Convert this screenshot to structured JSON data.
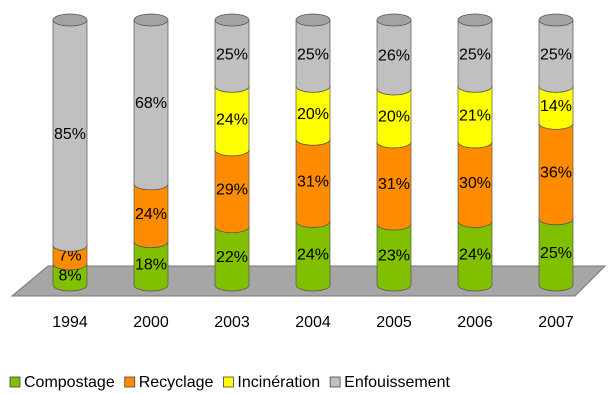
{
  "chart_data": {
    "type": "bar",
    "stacking": "percent",
    "categories": [
      "1994",
      "2000",
      "2003",
      "2004",
      "2005",
      "2006",
      "2007"
    ],
    "series": [
      {
        "name": "Compostage",
        "color": "#80c000",
        "values": [
          8,
          18,
          22,
          24,
          23,
          24,
          25
        ],
        "value_labels": [
          "8%",
          "18%",
          "22%",
          "24%",
          "23%",
          "24%",
          "25%"
        ]
      },
      {
        "name": "Recyclage",
        "color": "#ff8c00",
        "values": [
          7,
          24,
          29,
          31,
          31,
          30,
          36
        ],
        "value_labels": [
          "7%",
          "24%",
          "29%",
          "31%",
          "31%",
          "30%",
          "36%"
        ]
      },
      {
        "name": "Incinération",
        "color": "#ffff00",
        "values": [
          null,
          null,
          24,
          20,
          20,
          21,
          14
        ],
        "value_labels": [
          null,
          null,
          "24%",
          "20%",
          "20%",
          "21%",
          "14%"
        ]
      },
      {
        "name": "Enfouissement",
        "color": "#c0c0c0",
        "values": [
          85,
          68,
          25,
          25,
          26,
          25,
          25
        ],
        "value_labels": [
          "85%",
          "68%",
          "25%",
          "25%",
          "26%",
          "25%",
          "25%"
        ]
      }
    ],
    "legend": "bottom"
  }
}
